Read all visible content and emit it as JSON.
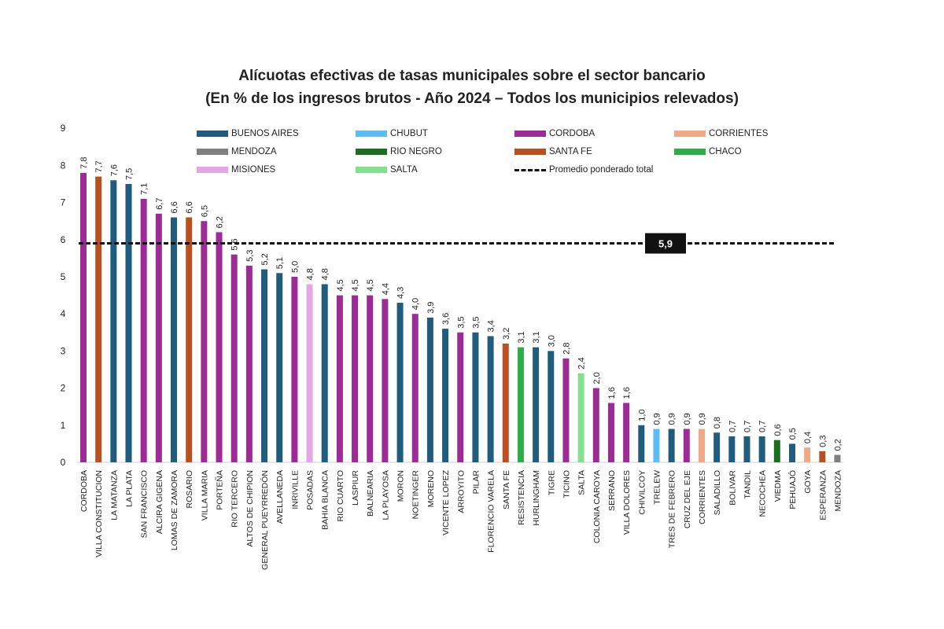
{
  "title": "Alícuotas efectivas de tasas municipales sobre el sector bancario",
  "subtitle": "(En % de los ingresos brutos - Año 2024 – Todos los municipios relevados)",
  "colors": {
    "BUENOS AIRES": "#1f5c7e",
    "CHUBUT": "#5bbdf0",
    "CORDOBA": "#9c2b96",
    "CORRIENTES": "#f0a886",
    "MENDOZA": "#7f7f7f",
    "RIO NEGRO": "#1c6e1f",
    "SANTA FE": "#b9501f",
    "CHACO": "#2eac48",
    "MISIONES": "#e6a6e6",
    "SALTA": "#84e08e"
  },
  "chart_data": {
    "type": "bar",
    "title": "Alícuotas efectivas de tasas municipales sobre el sector bancario",
    "subtitle": "(En % de los ingresos brutos - Año 2024 – Todos los municipios relevados)",
    "categories": [
      "CORDOBA",
      "VILLA CONSTITUCION",
      "LA MATANZA",
      "LA PLATA",
      "SAN FRANCISCO",
      "ALCIRA GIGENA",
      "LOMAS DE ZAMORA",
      "ROSARIO",
      "VILLA MARIA",
      "PORTEÑA",
      "RIO TERCERO",
      "ALTOS DE CHIPION",
      "GENERAL PUEYRREDÓN",
      "AVELLANEDA",
      "INRIVILLE",
      "POSADAS",
      "BAHIA BLANCA",
      "RIO CUARTO",
      "LASPIUR",
      "BALNEARIA",
      "LA PLAYOSA",
      "MORON",
      "NOETINGER",
      "MORENO",
      "VICENTE LOPEZ",
      "ARROYITO",
      "PILAR",
      "FLORENCIO VARELA",
      "SANTA FE",
      "RESISTENCIA",
      "HURLINGHAM",
      "TIGRE",
      "TICINO",
      "SALTA",
      "COLONIA CAROYA",
      "SERRANO",
      "VILLA DOLORES",
      "CHIVILCOY",
      "TRELEW",
      "TRES DE FEBRERO",
      "CRUZ DEL EJE",
      "CORRIENTES",
      "SALADILLO",
      "BOLIVAR",
      "TANDIL",
      "NECOCHEA",
      "VIEDMA",
      "PEHUAJÓ",
      "GOYA",
      "ESPERANZA",
      "MENDOZA"
    ],
    "values": [
      7.8,
      7.7,
      7.6,
      7.5,
      7.1,
      6.7,
      6.6,
      6.6,
      6.5,
      6.2,
      5.6,
      5.3,
      5.2,
      5.1,
      5.0,
      4.8,
      4.8,
      4.5,
      4.5,
      4.5,
      4.4,
      4.3,
      4.0,
      3.9,
      3.6,
      3.5,
      3.5,
      3.4,
      3.2,
      3.1,
      3.1,
      3.0,
      2.8,
      2.4,
      2.0,
      1.6,
      1.6,
      1.0,
      0.9,
      0.9,
      0.9,
      0.9,
      0.8,
      0.7,
      0.7,
      0.7,
      0.6,
      0.5,
      0.4,
      0.3,
      0.2
    ],
    "value_labels": [
      "7,8",
      "7,7",
      "7,6",
      "7,5",
      "7,1",
      "6,7",
      "6,6",
      "6,6",
      "6,5",
      "6,2",
      "5,6",
      "5,3",
      "5,2",
      "5,1",
      "5,0",
      "4,8",
      "4,8",
      "4,5",
      "4,5",
      "4,5",
      "4,4",
      "4,3",
      "4,0",
      "3,9",
      "3,6",
      "3,5",
      "3,5",
      "3,4",
      "3,2",
      "3,1",
      "3,1",
      "3,0",
      "2,8",
      "2,4",
      "2,0",
      "1,6",
      "1,6",
      "1,0",
      "0,9",
      "0,9",
      "0,9",
      "0,9",
      "0,8",
      "0,7",
      "0,7",
      "0,7",
      "0,6",
      "0,5",
      "0,4",
      "0,3",
      "0,2"
    ],
    "provinces": [
      "CORDOBA",
      "SANTA FE",
      "BUENOS AIRES",
      "BUENOS AIRES",
      "CORDOBA",
      "CORDOBA",
      "BUENOS AIRES",
      "SANTA FE",
      "CORDOBA",
      "CORDOBA",
      "CORDOBA",
      "CORDOBA",
      "BUENOS AIRES",
      "BUENOS AIRES",
      "CORDOBA",
      "MISIONES",
      "BUENOS AIRES",
      "CORDOBA",
      "CORDOBA",
      "CORDOBA",
      "CORDOBA",
      "BUENOS AIRES",
      "CORDOBA",
      "BUENOS AIRES",
      "BUENOS AIRES",
      "CORDOBA",
      "BUENOS AIRES",
      "BUENOS AIRES",
      "SANTA FE",
      "CHACO",
      "BUENOS AIRES",
      "BUENOS AIRES",
      "CORDOBA",
      "SALTA",
      "CORDOBA",
      "CORDOBA",
      "CORDOBA",
      "BUENOS AIRES",
      "CHUBUT",
      "BUENOS AIRES",
      "CORDOBA",
      "CORRIENTES",
      "BUENOS AIRES",
      "BUENOS AIRES",
      "BUENOS AIRES",
      "BUENOS AIRES",
      "RIO NEGRO",
      "BUENOS AIRES",
      "CORRIENTES",
      "SANTA FE",
      "MENDOZA"
    ],
    "ylim": [
      0,
      9
    ],
    "yticks": [
      0,
      1,
      2,
      3,
      4,
      5,
      6,
      7,
      8,
      9
    ],
    "grid": false,
    "reference_line": {
      "label": "Promedio ponderado total",
      "value": 5.9,
      "value_label": "5,9"
    },
    "legend": {
      "placement": "top",
      "entries": [
        "BUENOS AIRES",
        "CHUBUT",
        "CORDOBA",
        "CORRIENTES",
        "MENDOZA",
        "RIO NEGRO",
        "SANTA FE",
        "CHACO",
        "MISIONES",
        "SALTA"
      ],
      "line_entry": "Promedio ponderado total"
    }
  }
}
